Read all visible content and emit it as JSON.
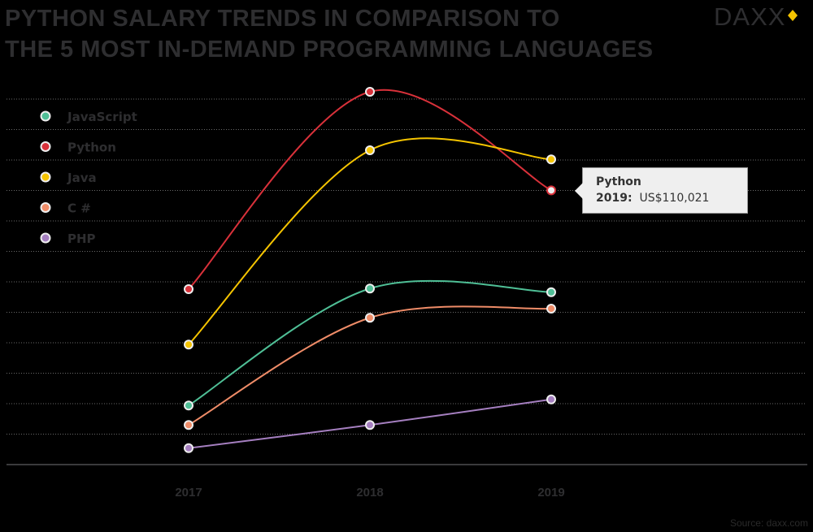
{
  "header": {
    "title_line1": "PYTHON SALARY TRENDS IN COMPARISON TO",
    "title_line2": "THE 5 MOST IN-DEMAND PROGRAMMING LANGUAGES",
    "logo_text": "DAXX"
  },
  "tooltip": {
    "series": "Python",
    "year_label": "2019:",
    "value": "US$110,021"
  },
  "source": "Source: daxx.com",
  "chart_data": {
    "type": "line",
    "title": "PYTHON SALARY TRENDS IN COMPARISON TO THE 5 MOST IN-DEMAND PROGRAMMING LANGUAGES",
    "categories": [
      "2017",
      "2018",
      "2019"
    ],
    "xlabel": "",
    "ylabel": "",
    "ylim": [
      65000,
      125000
    ],
    "y_grid_step": 5000,
    "grid": true,
    "y_tick_labels_shown": false,
    "legend_position": "top-left",
    "series": [
      {
        "name": "JavaScript",
        "color": "#4fbf96",
        "values": [
          74700,
          93900,
          93300
        ]
      },
      {
        "name": "Python",
        "color": "#d9313a",
        "values": [
          93800,
          126200,
          110021
        ]
      },
      {
        "name": "Java",
        "color": "#f5c400",
        "values": [
          84700,
          116600,
          115100
        ]
      },
      {
        "name": "C #",
        "color": "#ef8c68",
        "values": [
          71500,
          89100,
          90600
        ]
      },
      {
        "name": "PHP",
        "color": "#a57fc0",
        "values": [
          67700,
          71500,
          75700
        ]
      }
    ]
  }
}
